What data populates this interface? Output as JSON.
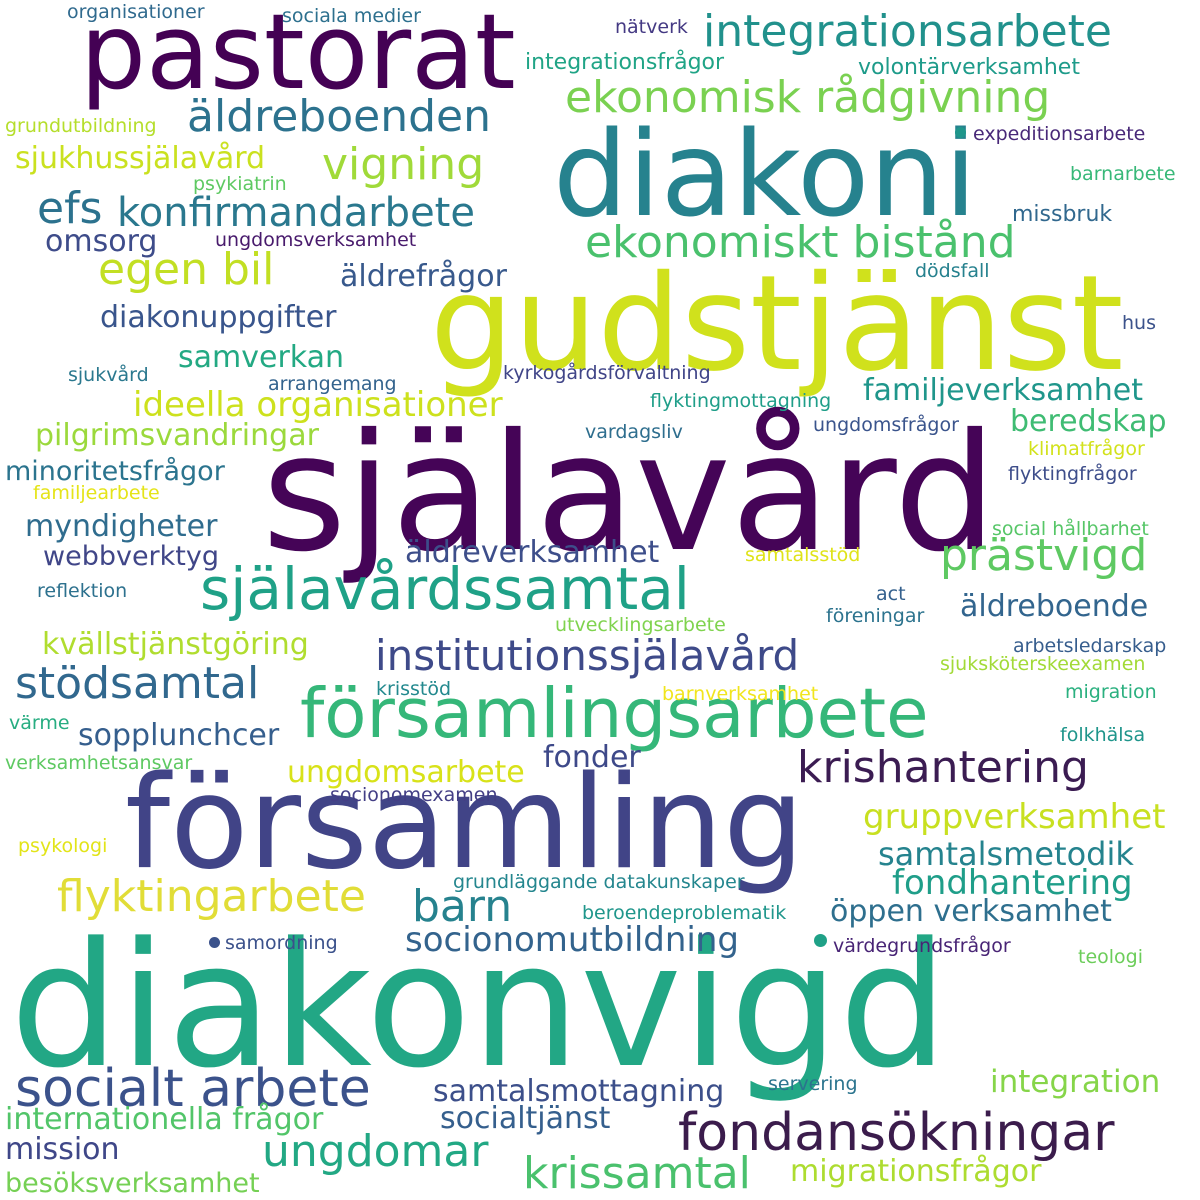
{
  "words": [
    {
      "text": "diakonvigd",
      "color": "#22a785"
    },
    {
      "text": "själavård",
      "color": "#450457"
    },
    {
      "text": "gudstjänst",
      "color": "#d0e11c"
    },
    {
      "text": "församling",
      "color": "#414487"
    },
    {
      "text": "diakoni",
      "color": "#26828e"
    },
    {
      "text": "pastorat",
      "color": "#440154"
    },
    {
      "text": "församlingsarbete",
      "color": "#35b779"
    },
    {
      "text": "själavårdssamtal",
      "color": "#1fa187"
    },
    {
      "text": "fondansökningar",
      "color": "#3b1c4c"
    },
    {
      "text": "socialt arbete",
      "color": "#3b528b"
    },
    {
      "text": "integrationsarbete",
      "color": "#21918c"
    },
    {
      "text": "ekonomisk rådgivning",
      "color": "#7ad151"
    },
    {
      "text": "ekonomiskt bistånd",
      "color": "#4ac16d"
    },
    {
      "text": "institutionssjälavård",
      "color": "#3e4a89"
    },
    {
      "text": "äldreboenden",
      "color": "#2c728e"
    },
    {
      "text": "krishantering",
      "color": "#3b1c52"
    },
    {
      "text": "prästvigd",
      "color": "#5ec962"
    },
    {
      "text": "vigning",
      "color": "#a0da39"
    },
    {
      "text": "konfirmandarbete",
      "color": "#2a788e"
    },
    {
      "text": "egen bil",
      "color": "#c2df23"
    },
    {
      "text": "stödsamtal",
      "color": "#31688e"
    },
    {
      "text": "flyktingarbete",
      "color": "#e1dd37"
    },
    {
      "text": "ungdomar",
      "color": "#22a884"
    },
    {
      "text": "krissamtal",
      "color": "#4ac16d"
    },
    {
      "text": "barn",
      "color": "#26828e"
    },
    {
      "text": "ideella organisationer",
      "color": "#cde11d"
    },
    {
      "text": "socionomutbildning",
      "color": "#33638d"
    },
    {
      "text": "efs",
      "color": "#2c728e"
    },
    {
      "text": "integration",
      "color": "#86d549"
    },
    {
      "text": "fondhantering",
      "color": "#1f9e89"
    },
    {
      "text": "gruppverksamhet",
      "color": "#c8e020"
    },
    {
      "text": "samtalsmetodik",
      "color": "#25838e"
    },
    {
      "text": "familjeverksamhet",
      "color": "#1f968b"
    },
    {
      "text": "ungdomsarbete",
      "color": "#d8e219"
    },
    {
      "text": "samtalsmottagning",
      "color": "#3c4f8a"
    },
    {
      "text": "öppen verksamhet",
      "color": "#2e6f8e"
    },
    {
      "text": "socialtjänst",
      "color": "#355f8d"
    },
    {
      "text": "äldreverksamhet",
      "color": "#3d4e8a"
    },
    {
      "text": "sjukhussjälavård",
      "color": "#cae11f"
    },
    {
      "text": "samverkan",
      "color": "#23a983"
    },
    {
      "text": "äldrefrågor",
      "color": "#38598c"
    },
    {
      "text": "diakonuppgifter",
      "color": "#39558c"
    },
    {
      "text": "pilgrimsvandringar",
      "color": "#9bd93c"
    },
    {
      "text": "myndigheter",
      "color": "#2f6c8e"
    },
    {
      "text": "beredskap",
      "color": "#3fbc73"
    },
    {
      "text": "äldreboende",
      "color": "#32658e"
    },
    {
      "text": "kvällstjänstgöring",
      "color": "#b0dd2f"
    },
    {
      "text": "sopplunchcer",
      "color": "#355e8d"
    },
    {
      "text": "fonder",
      "color": "#3e4989"
    },
    {
      "text": "internationella frågor",
      "color": "#52c569"
    },
    {
      "text": "migrationsfrågor",
      "color": "#addc30"
    },
    {
      "text": "mission",
      "color": "#3f4788"
    },
    {
      "text": "besöksverksamhet",
      "color": "#75d054"
    },
    {
      "text": "omsorg",
      "color": "#3e4c8a"
    },
    {
      "text": "webbverktyg",
      "color": "#404688"
    },
    {
      "text": "minoritetsfrågor",
      "color": "#2b748e"
    },
    {
      "text": "volontärverksamhet",
      "color": "#1e9b8a"
    },
    {
      "text": "integrationsfrågor",
      "color": "#20a486"
    },
    {
      "text": "grundutbildning",
      "color": "#b5de2b"
    },
    {
      "text": "organisationer",
      "color": "#306a8e"
    },
    {
      "text": "sociala medier",
      "color": "#2d708e"
    },
    {
      "text": "nätverk",
      "color": "#443983"
    },
    {
      "text": "expeditionsarbete",
      "color": "#482878"
    },
    {
      "text": "barnarbete",
      "color": "#37b878"
    },
    {
      "text": "missbruk",
      "color": "#31688e"
    },
    {
      "text": "ungdomsverksamhet",
      "color": "#481a6c"
    },
    {
      "text": "psykiatrin",
      "color": "#5ec962"
    },
    {
      "text": "dödsfall",
      "color": "#26818e"
    },
    {
      "text": "hus",
      "color": "#3b528b"
    },
    {
      "text": "sjukvård",
      "color": "#2a788e"
    },
    {
      "text": "arrangemang",
      "color": "#33638d"
    },
    {
      "text": "kyrkogårdsförvaltning",
      "color": "#404588"
    },
    {
      "text": "flyktingmottagning",
      "color": "#1f9e89"
    },
    {
      "text": "ungdomsfrågor",
      "color": "#3a548c"
    },
    {
      "text": "klimatfrågor",
      "color": "#d2e21b"
    },
    {
      "text": "flyktingfrågor",
      "color": "#3d4d8a"
    },
    {
      "text": "vardagsliv",
      "color": "#2e6e8e"
    },
    {
      "text": "familjearbete",
      "color": "#e5e419"
    },
    {
      "text": "social hållbarhet",
      "color": "#56c667"
    },
    {
      "text": "samtalsstöd",
      "color": "#dfe318"
    },
    {
      "text": "reflektion",
      "color": "#2d718e"
    },
    {
      "text": "act",
      "color": "#34608d"
    },
    {
      "text": "föreningar",
      "color": "#2c738e"
    },
    {
      "text": "utvecklingsarbete",
      "color": "#7fd34e"
    },
    {
      "text": "arbetsledarskap",
      "color": "#365d8d"
    },
    {
      "text": "sjuksköterskeexamen",
      "color": "#a2da37"
    },
    {
      "text": "krisstöd",
      "color": "#23898e"
    },
    {
      "text": "barnverksamhet",
      "color": "#f1e51d"
    },
    {
      "text": "migration",
      "color": "#2ab07f"
    },
    {
      "text": "värme",
      "color": "#27ad81"
    },
    {
      "text": "folkhälsa",
      "color": "#1f958b"
    },
    {
      "text": "verksamhetsansvar",
      "color": "#5ec962"
    },
    {
      "text": "socionomexamen",
      "color": "#433e85"
    },
    {
      "text": "psykologi",
      "color": "#e2e418"
    },
    {
      "text": "grundläggande datakunskaper",
      "color": "#24868e"
    },
    {
      "text": "beroendeproblematik",
      "color": "#1f968b"
    },
    {
      "text": "samordning",
      "color": "#3b518b"
    },
    {
      "text": "värdegrundsfrågor",
      "color": "#482475"
    },
    {
      "text": "teologi",
      "color": "#6ccd5a"
    },
    {
      "text": "servering",
      "color": "#2b748e"
    }
  ]
}
